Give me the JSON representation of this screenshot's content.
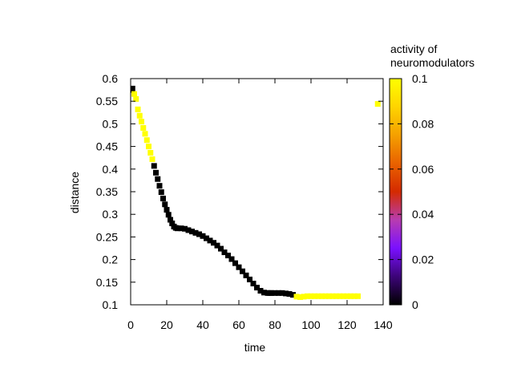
{
  "chart_data": {
    "type": "scatter",
    "xlabel": "time",
    "ylabel": "distance",
    "xlim": [
      0,
      140
    ],
    "ylim": [
      0.1,
      0.6
    ],
    "xticks": [
      0,
      20,
      40,
      60,
      80,
      100,
      120,
      140
    ],
    "yticks": [
      0.1,
      0.15,
      0.2,
      0.25,
      0.3,
      0.35,
      0.4,
      0.45,
      0.5,
      0.55,
      0.6
    ],
    "colorbar": {
      "title_lines": [
        "activity of",
        "neuromodulators"
      ],
      "range": [
        0,
        0.1
      ],
      "ticks": [
        0,
        0.02,
        0.04,
        0.06,
        0.08,
        0.1
      ],
      "palette": [
        "#000000",
        "#3c0478",
        "#7a10ff",
        "#b83cb0",
        "#d42a00",
        "#e96200",
        "#f5a000",
        "#ffd400",
        "#ffff00"
      ]
    },
    "series": [
      {
        "x": [
          0,
          1,
          2,
          3,
          4,
          5,
          6,
          7,
          8,
          9,
          10,
          11,
          12,
          13,
          14,
          15,
          16,
          17,
          18,
          19,
          20,
          21,
          22,
          23,
          24,
          25,
          26,
          28,
          30,
          32,
          34,
          36,
          38,
          40,
          42,
          44,
          46,
          48,
          50,
          52,
          54,
          56,
          58,
          60,
          62,
          64,
          66,
          68,
          70,
          72,
          74,
          76,
          77,
          78,
          80,
          82,
          84,
          86,
          88,
          90,
          92,
          94,
          96,
          98,
          100,
          102,
          104,
          106,
          108,
          110,
          112,
          114,
          116,
          118,
          120,
          122,
          124,
          126,
          137
        ],
        "y": [
          0.575,
          0.578,
          0.566,
          0.555,
          0.532,
          0.518,
          0.505,
          0.491,
          0.478,
          0.464,
          0.45,
          0.436,
          0.422,
          0.407,
          0.392,
          0.378,
          0.363,
          0.349,
          0.335,
          0.322,
          0.31,
          0.299,
          0.288,
          0.28,
          0.273,
          0.27,
          0.269,
          0.269,
          0.268,
          0.265,
          0.262,
          0.259,
          0.256,
          0.252,
          0.247,
          0.242,
          0.237,
          0.231,
          0.224,
          0.216,
          0.209,
          0.201,
          0.192,
          0.183,
          0.174,
          0.165,
          0.156,
          0.147,
          0.138,
          0.131,
          0.127,
          0.126,
          0.126,
          0.126,
          0.126,
          0.126,
          0.126,
          0.125,
          0.124,
          0.122,
          0.118,
          0.117,
          0.118,
          0.119,
          0.119,
          0.119,
          0.119,
          0.119,
          0.119,
          0.119,
          0.119,
          0.119,
          0.119,
          0.119,
          0.119,
          0.119,
          0.119,
          0.119,
          0.544
        ],
        "activity": [
          0,
          0,
          0.1,
          0.1,
          0.1,
          0.1,
          0.1,
          0.1,
          0.1,
          0.1,
          0.1,
          0.1,
          0.1,
          0,
          0,
          0,
          0,
          0,
          0,
          0,
          0,
          0,
          0,
          0,
          0,
          0,
          0,
          0,
          0,
          0,
          0,
          0,
          0,
          0,
          0,
          0,
          0,
          0,
          0,
          0,
          0,
          0,
          0,
          0,
          0,
          0,
          0,
          0,
          0,
          0,
          0,
          0,
          0,
          0,
          0,
          0,
          0,
          0,
          0,
          0,
          0.1,
          0.1,
          0.1,
          0.1,
          0.1,
          0.1,
          0.1,
          0.1,
          0.1,
          0.1,
          0.1,
          0.1,
          0.1,
          0.1,
          0.1,
          0.1,
          0.1,
          0.1,
          0.1
        ]
      }
    ]
  }
}
